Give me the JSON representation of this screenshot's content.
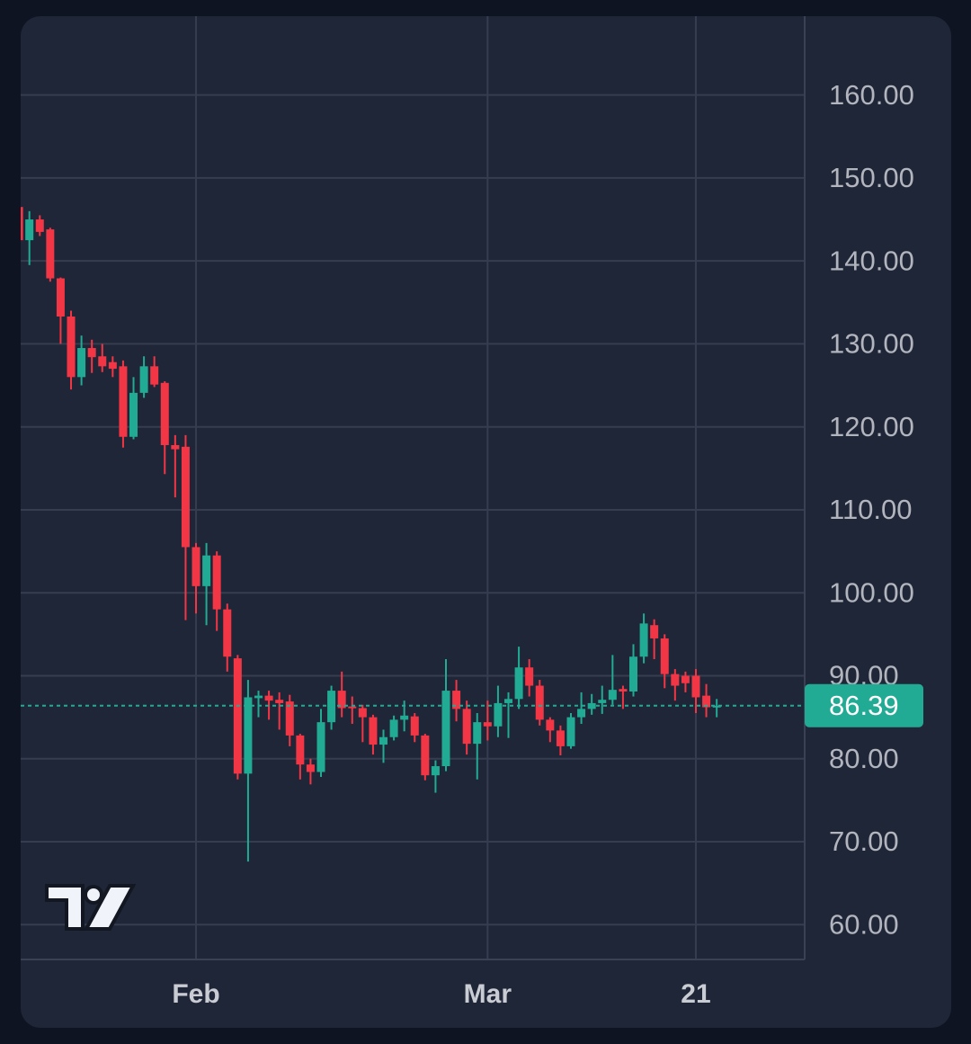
{
  "chart_data": {
    "type": "candlestick",
    "categories": [
      null,
      null,
      null,
      null,
      null,
      null,
      null,
      null,
      null,
      null,
      null,
      null,
      null,
      null,
      null,
      null,
      null,
      "Feb",
      null,
      null,
      null,
      null,
      null,
      null,
      null,
      null,
      null,
      null,
      null,
      null,
      null,
      null,
      null,
      null,
      null,
      null,
      null,
      null,
      null,
      null,
      null,
      null,
      null,
      null,
      null,
      "Mar",
      null,
      null,
      null,
      null,
      null,
      null,
      null,
      null,
      null,
      null,
      null,
      null,
      null,
      null,
      null,
      null,
      null,
      null,
      null,
      "21",
      null,
      null
    ],
    "open": [
      146.5,
      142.5,
      145,
      143.8,
      137.9,
      133.3,
      126,
      129.5,
      128.5,
      127.8,
      127.3,
      118.8,
      124.1,
      127.3,
      125.3,
      117.8,
      117.6,
      105.5,
      100.8,
      104.5,
      98,
      92.1,
      78.2,
      87.3,
      87.6,
      87.1,
      86.9,
      82.8,
      79.3,
      78.4,
      84.4,
      88.2,
      86.3,
      86.1,
      85,
      81.7,
      82.6,
      84.7,
      85.1,
      82.8,
      78,
      79.1,
      88.2,
      86,
      81.8,
      84.4,
      83.9,
      86.7,
      87.2,
      91,
      88.8,
      84.7,
      83.4,
      81.5,
      85,
      86,
      86.7,
      87.1,
      88.4,
      88.1,
      92.3,
      96.1,
      94.5,
      90.2,
      90,
      90,
      87.6,
      86.2
    ],
    "high": [
      147,
      146,
      145.5,
      144,
      138,
      134,
      131,
      130.5,
      130,
      128.5,
      128,
      126,
      128.5,
      128.5,
      125.5,
      119,
      119,
      106,
      106,
      105,
      98.7,
      92.5,
      89.5,
      88.2,
      88.2,
      88,
      87.7,
      83,
      80,
      86,
      88.8,
      90.5,
      87.5,
      86.5,
      85.3,
      83.5,
      85.2,
      87,
      85.5,
      83,
      79.8,
      92,
      89.5,
      87,
      85.5,
      87,
      88.8,
      88,
      93.5,
      92,
      89.5,
      85,
      84,
      85.5,
      88,
      87.8,
      88.8,
      92.5,
      88.8,
      93.8,
      97.5,
      96.8,
      95,
      90.8,
      90.5,
      90.8,
      89,
      87.2
    ],
    "low": [
      141,
      139.5,
      143,
      137.5,
      130,
      124.5,
      125,
      126.5,
      126.6,
      126,
      117.5,
      118.5,
      123.5,
      124.8,
      114.3,
      111.5,
      96.7,
      97.5,
      96.1,
      95.4,
      90.5,
      77.5,
      67.6,
      85,
      84.7,
      83.5,
      81.5,
      77.5,
      76.9,
      77.8,
      83.5,
      85,
      84.2,
      82,
      80.5,
      79.5,
      82.2,
      83.3,
      82,
      77.4,
      75.9,
      78.5,
      84.5,
      80.5,
      77.5,
      82.2,
      82.6,
      82.5,
      86,
      87.5,
      84,
      82,
      80.4,
      81.2,
      84.2,
      85.3,
      85.4,
      86.5,
      86,
      87.5,
      91.5,
      92,
      88.5,
      87,
      88,
      85.5,
      85,
      85
    ],
    "close": [
      142.5,
      145,
      143.5,
      137.9,
      133.3,
      126,
      129.5,
      128.4,
      127.3,
      127,
      118.8,
      124.1,
      127.3,
      125.1,
      117.8,
      117.3,
      105.5,
      100.8,
      104.5,
      98,
      92.3,
      78.2,
      87.4,
      87.6,
      87,
      86.7,
      82.8,
      79.3,
      78.4,
      84.4,
      88.2,
      86.1,
      86.1,
      85,
      81.7,
      82.6,
      84.7,
      85.2,
      82.8,
      78,
      79.1,
      88.2,
      86,
      81.8,
      84.4,
      83.9,
      86.7,
      87.2,
      91,
      88.8,
      84.7,
      83.4,
      81.5,
      85,
      86,
      86.7,
      87.1,
      88.3,
      88.1,
      92.3,
      96.3,
      94.5,
      90.2,
      88.8,
      89.1,
      87.4,
      86.2,
      86.39
    ],
    "up_color": "#22ab94",
    "down_color": "#f23645",
    "last_price": 86.39,
    "ylim": [
      55.8,
      169.5
    ],
    "yticks": [
      {
        "value": 60,
        "label": "60.00"
      },
      {
        "value": 70,
        "label": "70.00"
      },
      {
        "value": 80,
        "label": "80.00"
      },
      {
        "value": 90,
        "label": "90.00"
      },
      {
        "value": 100,
        "label": "100.00"
      },
      {
        "value": 110,
        "label": "110.00"
      },
      {
        "value": 120,
        "label": "120.00"
      },
      {
        "value": 130,
        "label": "130.00"
      },
      {
        "value": 140,
        "label": "140.00"
      },
      {
        "value": 150,
        "label": "150.00"
      },
      {
        "value": 160,
        "label": "160.00"
      }
    ],
    "grid": true
  }
}
